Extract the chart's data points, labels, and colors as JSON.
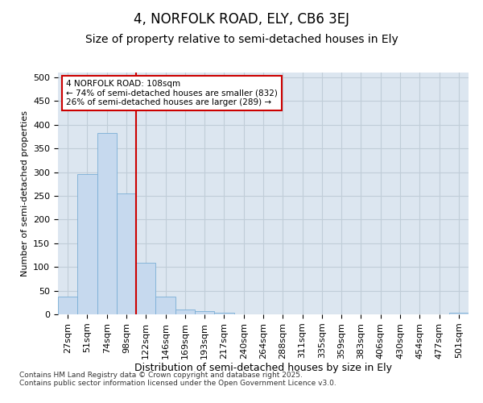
{
  "title": "4, NORFOLK ROAD, ELY, CB6 3EJ",
  "subtitle": "Size of property relative to semi-detached houses in Ely",
  "xlabel": "Distribution of semi-detached houses by size in Ely",
  "ylabel": "Number of semi-detached properties",
  "bins": [
    "27sqm",
    "51sqm",
    "74sqm",
    "98sqm",
    "122sqm",
    "146sqm",
    "169sqm",
    "193sqm",
    "217sqm",
    "240sqm",
    "264sqm",
    "288sqm",
    "311sqm",
    "335sqm",
    "359sqm",
    "383sqm",
    "406sqm",
    "430sqm",
    "454sqm",
    "477sqm",
    "501sqm"
  ],
  "values": [
    37,
    295,
    383,
    255,
    108,
    37,
    10,
    6,
    4,
    0,
    0,
    0,
    0,
    0,
    0,
    0,
    0,
    0,
    0,
    0,
    4
  ],
  "bar_color": "#c6d9ee",
  "bar_edge_color": "#7aaed6",
  "grid_color": "#c0cdd8",
  "bg_color": "#dce6f0",
  "vline_color": "#cc0000",
  "vline_x_index": 3,
  "annotation_title": "4 NORFOLK ROAD: 108sqm",
  "annotation_line1": "← 74% of semi-detached houses are smaller (832)",
  "annotation_line2": "26% of semi-detached houses are larger (289) →",
  "annotation_box_color": "#ffffff",
  "annotation_box_edge_color": "#cc0000",
  "ylim": [
    0,
    510
  ],
  "yticks": [
    0,
    50,
    100,
    150,
    200,
    250,
    300,
    350,
    400,
    450,
    500
  ],
  "footer_line1": "Contains HM Land Registry data © Crown copyright and database right 2025.",
  "footer_line2": "Contains public sector information licensed under the Open Government Licence v3.0.",
  "title_fontsize": 12,
  "subtitle_fontsize": 10,
  "xlabel_fontsize": 9,
  "ylabel_fontsize": 8,
  "tick_fontsize": 8,
  "footer_fontsize": 6.5
}
